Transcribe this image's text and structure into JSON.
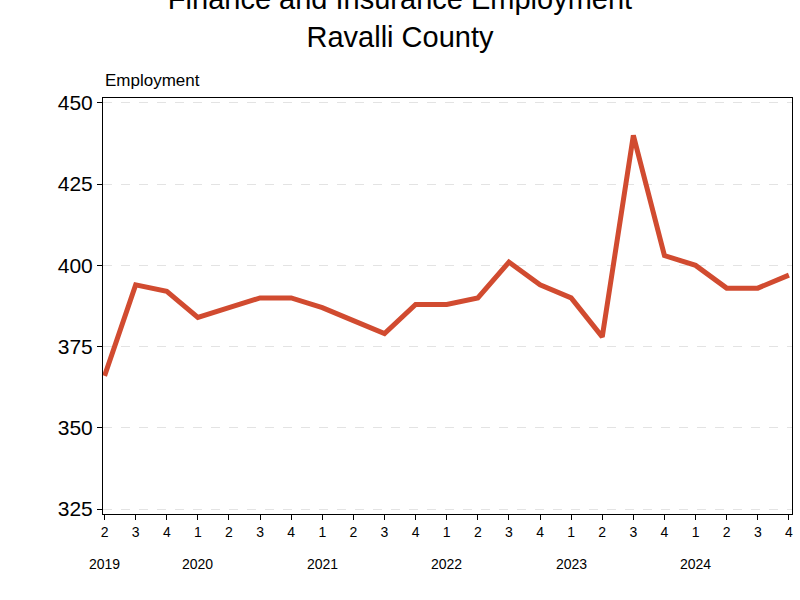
{
  "chart_data": {
    "type": "line",
    "title": "Finance and Insurance Employment",
    "subtitle": "Ravalli County",
    "ylabel": "Employment",
    "categories": [
      "2",
      "3",
      "4",
      "1",
      "2",
      "3",
      "4",
      "1",
      "2",
      "3",
      "4",
      "1",
      "2",
      "3",
      "4",
      "1",
      "2",
      "3",
      "4",
      "1",
      "2",
      "3",
      "4"
    ],
    "years": [
      "2019",
      null,
      null,
      "2020",
      null,
      null,
      null,
      "2021",
      null,
      null,
      null,
      "2022",
      null,
      null,
      null,
      "2023",
      null,
      null,
      null,
      "2024",
      null,
      null,
      null
    ],
    "values": [
      366,
      394,
      392,
      384,
      387,
      390,
      390,
      387,
      383,
      379,
      388,
      388,
      390,
      401,
      394,
      390,
      378,
      440,
      403,
      400,
      393,
      393,
      397
    ],
    "color": "#d14b30",
    "ylim": [
      323.5,
      451.5
    ],
    "yticks": [
      325,
      350,
      375,
      400,
      425,
      450
    ],
    "grid": true
  }
}
